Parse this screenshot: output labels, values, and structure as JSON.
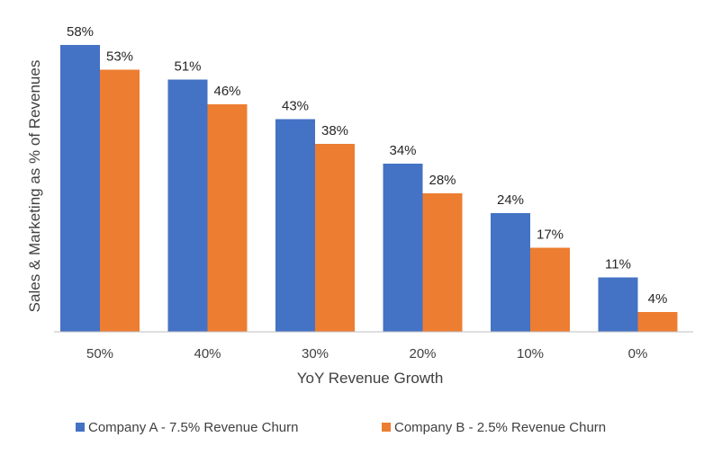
{
  "chart_data": {
    "type": "bar",
    "title": "",
    "xlabel": "YoY Revenue Growth",
    "ylabel": "Sales & Marketing as % of Revenues",
    "categories": [
      "50%",
      "40%",
      "30%",
      "20%",
      "10%",
      "0%"
    ],
    "ylim": [
      0,
      60
    ],
    "grid": false,
    "legend_position": "bottom",
    "series": [
      {
        "name": "Company A - 7.5% Revenue Churn",
        "color": "#4472C4",
        "values": [
          58,
          51,
          43,
          34,
          24,
          11
        ],
        "labels": [
          "58%",
          "51%",
          "43%",
          "34%",
          "24%",
          "11%"
        ]
      },
      {
        "name": "Company B - 2.5% Revenue Churn",
        "color": "#ED7D31",
        "values": [
          53,
          46,
          38,
          28,
          17,
          4
        ],
        "labels": [
          "53%",
          "46%",
          "38%",
          "28%",
          "17%",
          "4%"
        ]
      }
    ]
  }
}
